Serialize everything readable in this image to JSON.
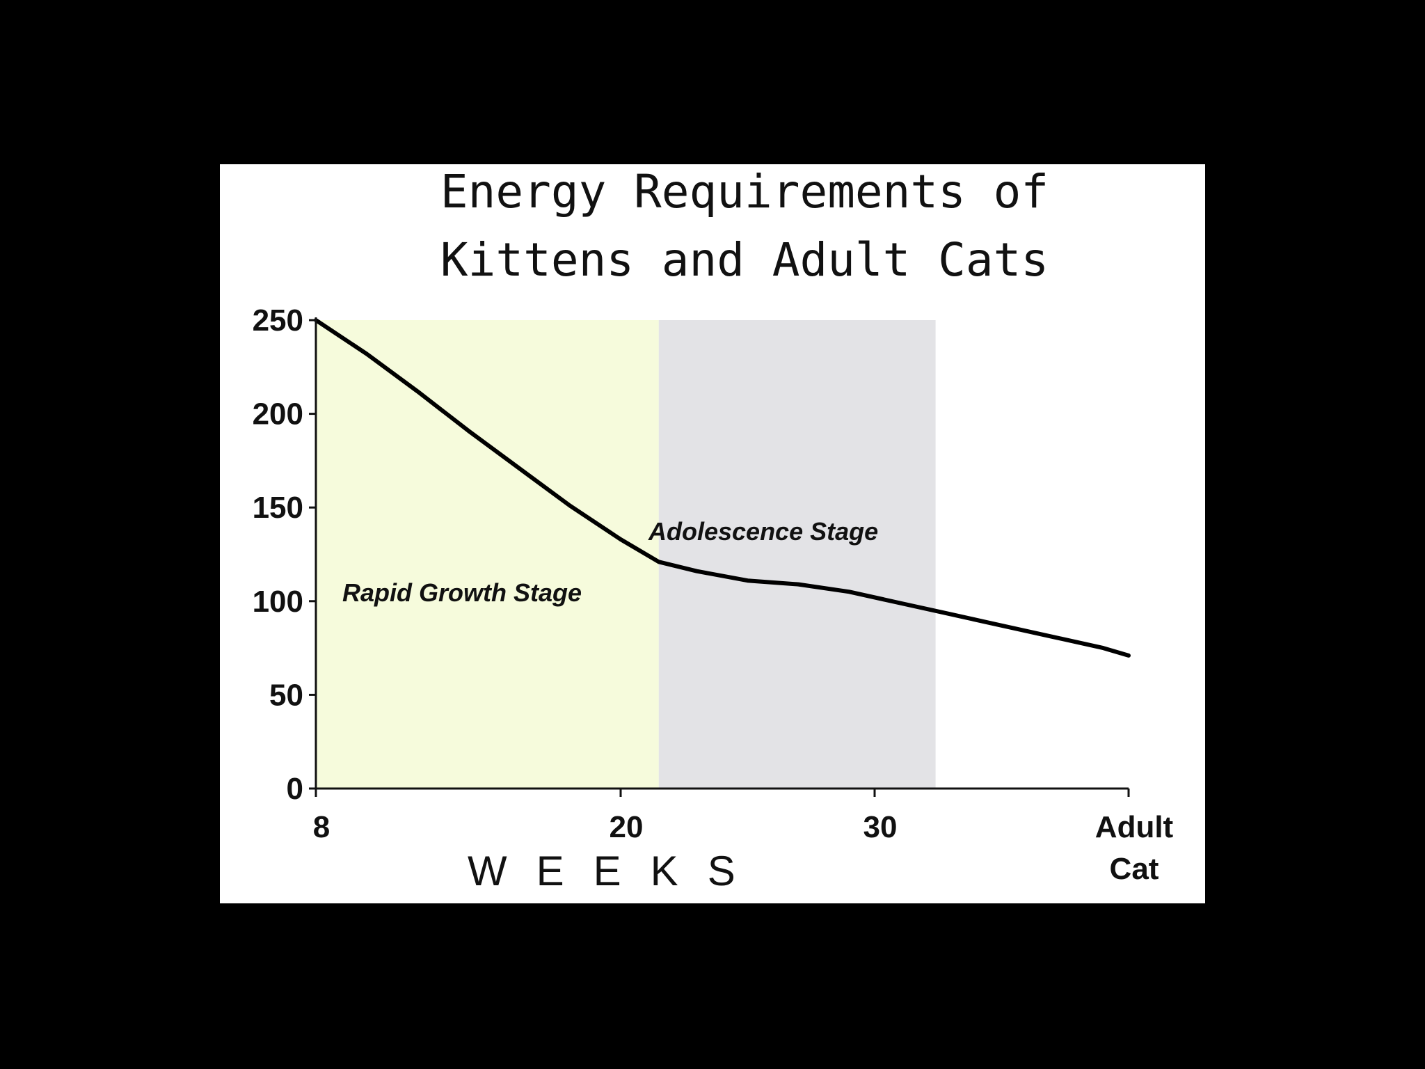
{
  "chart_data": {
    "type": "line",
    "title_lines": [
      "Energy Requirements of",
      "Kittens and Adult Cats"
    ],
    "xlabel": "W E E K S",
    "ylabel": "",
    "ylim": [
      0,
      250
    ],
    "y_ticks": [
      0,
      50,
      100,
      150,
      200,
      250
    ],
    "x_ticks": [
      {
        "value": 8,
        "label": [
          "8"
        ]
      },
      {
        "value": 20,
        "label": [
          "20"
        ]
      },
      {
        "value": 30,
        "label": [
          "30"
        ]
      },
      {
        "value": 40,
        "label": [
          "Adult",
          "Cat"
        ]
      }
    ],
    "grid": false,
    "regions": [
      {
        "name": "Rapid Growth Stage",
        "from": 8,
        "to": 21.5,
        "color": "#f6fbdc"
      },
      {
        "name": "Adolescence Stage",
        "from": 21.5,
        "to": 32.4,
        "color": "#e3e3e6"
      }
    ],
    "series": [
      {
        "x": [
          8,
          10,
          12,
          14,
          16,
          18,
          20,
          21.5,
          23,
          25,
          27,
          29,
          31,
          33,
          35,
          37,
          39,
          40
        ],
        "y": [
          250,
          232,
          212,
          191,
          171,
          151,
          133,
          121,
          116,
          111,
          109,
          105,
          99,
          93,
          87,
          81,
          75,
          71
        ],
        "color": "#000000"
      }
    ]
  }
}
